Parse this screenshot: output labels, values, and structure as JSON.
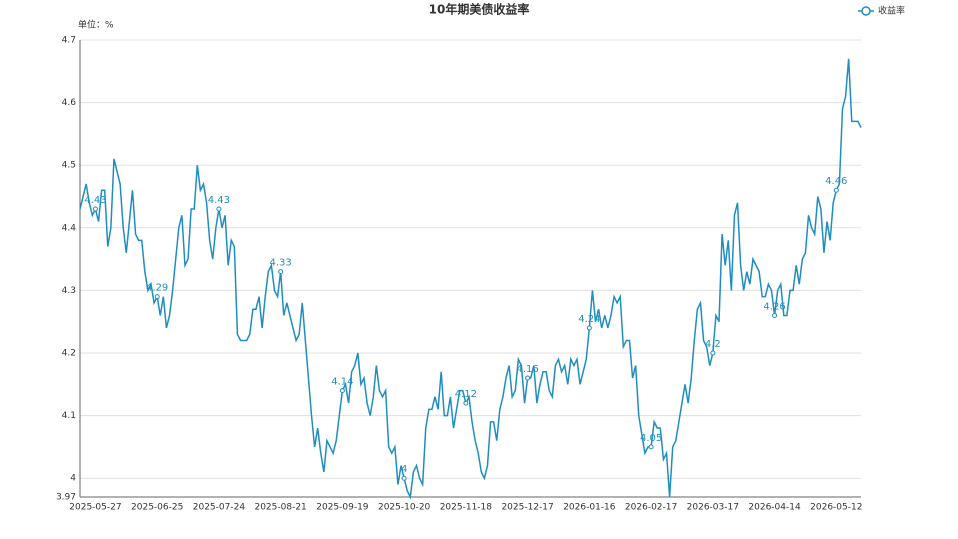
{
  "chart_data": {
    "type": "line",
    "title": "10年期美债收益率",
    "y_axis_label": "单位：%",
    "legend_position": "top-right",
    "grid": true,
    "ylim": [
      3.97,
      4.7
    ],
    "yticks": [
      3.97,
      4,
      4.1,
      4.2,
      4.3,
      4.4,
      4.5,
      4.6,
      4.7
    ],
    "categories": [
      null,
      null,
      null,
      null,
      null,
      "2025-05-27",
      null,
      null,
      null,
      null,
      null,
      null,
      null,
      null,
      null,
      null,
      null,
      null,
      null,
      null,
      null,
      null,
      null,
      null,
      null,
      "2025-06-25",
      null,
      null,
      null,
      null,
      null,
      null,
      null,
      null,
      null,
      null,
      null,
      null,
      null,
      null,
      null,
      null,
      null,
      null,
      null,
      "2025-07-24",
      null,
      null,
      null,
      null,
      null,
      null,
      null,
      null,
      null,
      null,
      null,
      null,
      null,
      null,
      null,
      null,
      null,
      null,
      null,
      "2025-08-21",
      null,
      null,
      null,
      null,
      null,
      null,
      null,
      null,
      null,
      null,
      null,
      null,
      null,
      null,
      null,
      null,
      null,
      null,
      null,
      "2025-09-19",
      null,
      null,
      null,
      null,
      null,
      null,
      null,
      null,
      null,
      null,
      null,
      null,
      null,
      null,
      null,
      null,
      null,
      null,
      null,
      "2025-10-20",
      null,
      null,
      null,
      null,
      null,
      null,
      null,
      null,
      null,
      null,
      null,
      null,
      null,
      null,
      null,
      null,
      null,
      null,
      null,
      "2025-11-18",
      null,
      null,
      null,
      null,
      null,
      null,
      null,
      null,
      null,
      null,
      null,
      null,
      null,
      null,
      null,
      null,
      null,
      null,
      null,
      "2025-12-17",
      null,
      null,
      null,
      null,
      null,
      null,
      null,
      null,
      null,
      null,
      null,
      null,
      null,
      null,
      null,
      null,
      null,
      null,
      null,
      "2026-01-16",
      null,
      null,
      null,
      null,
      null,
      null,
      null,
      null,
      null,
      null,
      null,
      null,
      null,
      null,
      null,
      null,
      null,
      null,
      null,
      "2026-02-17",
      null,
      null,
      null,
      null,
      null,
      null,
      null,
      null,
      null,
      null,
      null,
      null,
      null,
      null,
      null,
      null,
      null,
      null,
      null,
      "2026-03-17",
      null,
      null,
      null,
      null,
      null,
      null,
      null,
      null,
      null,
      null,
      null,
      null,
      null,
      null,
      null,
      null,
      null,
      null,
      null,
      "2026-04-14",
      null,
      null,
      null,
      null,
      null,
      null,
      null,
      null,
      null,
      null,
      null,
      null,
      null,
      null,
      null,
      null,
      null,
      null,
      null,
      "2026-05-12",
      null,
      null,
      null,
      null,
      null,
      null,
      null,
      null
    ],
    "series": [
      {
        "name": "收益率",
        "color": "#1f8dc0",
        "values": [
          4.43,
          4.45,
          4.47,
          4.44,
          4.42,
          4.43,
          4.41,
          4.46,
          4.46,
          4.37,
          4.4,
          4.51,
          4.49,
          4.47,
          4.4,
          4.36,
          4.41,
          4.46,
          4.39,
          4.38,
          4.38,
          4.33,
          4.3,
          4.31,
          4.28,
          4.29,
          4.26,
          4.29,
          4.24,
          4.26,
          4.3,
          4.35,
          4.4,
          4.42,
          4.34,
          4.35,
          4.43,
          4.43,
          4.5,
          4.46,
          4.47,
          4.44,
          4.38,
          4.35,
          4.4,
          4.43,
          4.4,
          4.42,
          4.34,
          4.38,
          4.37,
          4.23,
          4.22,
          4.22,
          4.22,
          4.23,
          4.27,
          4.27,
          4.29,
          4.24,
          4.29,
          4.33,
          4.34,
          4.3,
          4.29,
          4.33,
          4.26,
          4.28,
          4.26,
          4.24,
          4.22,
          4.23,
          4.28,
          4.22,
          4.16,
          4.1,
          4.05,
          4.08,
          4.04,
          4.01,
          4.06,
          4.05,
          4.04,
          4.06,
          4.1,
          4.14,
          4.15,
          4.12,
          4.17,
          4.18,
          4.2,
          4.15,
          4.16,
          4.12,
          4.1,
          4.13,
          4.18,
          4.14,
          4.13,
          4.14,
          4.05,
          4.04,
          4.05,
          3.99,
          4.02,
          4.0,
          3.98,
          3.97,
          4.01,
          4.02,
          4.0,
          3.99,
          4.08,
          4.11,
          4.11,
          4.13,
          4.11,
          4.17,
          4.1,
          4.1,
          4.13,
          4.08,
          4.11,
          4.14,
          4.14,
          4.12,
          4.13,
          4.09,
          4.06,
          4.04,
          4.01,
          4.0,
          4.02,
          4.09,
          4.09,
          4.06,
          4.11,
          4.13,
          4.16,
          4.18,
          4.13,
          4.14,
          4.19,
          4.18,
          4.12,
          4.16,
          4.16,
          4.18,
          4.12,
          4.15,
          4.17,
          4.17,
          4.14,
          4.13,
          4.18,
          4.19,
          4.17,
          4.18,
          4.15,
          4.19,
          4.18,
          4.19,
          4.15,
          4.17,
          4.19,
          4.24,
          4.3,
          4.25,
          4.27,
          4.24,
          4.26,
          4.24,
          4.26,
          4.29,
          4.28,
          4.29,
          4.21,
          4.22,
          4.22,
          4.16,
          4.18,
          4.1,
          4.07,
          4.04,
          4.05,
          4.05,
          4.09,
          4.08,
          4.08,
          4.03,
          4.04,
          3.97,
          4.05,
          4.06,
          4.09,
          4.12,
          4.15,
          4.12,
          4.16,
          4.22,
          4.27,
          4.28,
          4.22,
          4.21,
          4.18,
          4.2,
          4.26,
          4.25,
          4.39,
          4.34,
          4.38,
          4.3,
          4.42,
          4.44,
          4.34,
          4.3,
          4.33,
          4.31,
          4.35,
          4.34,
          4.33,
          4.29,
          4.29,
          4.31,
          4.3,
          4.26,
          4.3,
          4.31,
          4.26,
          4.26,
          4.3,
          4.3,
          4.34,
          4.31,
          4.35,
          4.36,
          4.42,
          4.4,
          4.39,
          4.45,
          4.43,
          4.36,
          4.41,
          4.38,
          4.44,
          4.46,
          4.47,
          4.59,
          4.61,
          4.67,
          4.57,
          4.57,
          4.57,
          4.56
        ]
      }
    ]
  }
}
